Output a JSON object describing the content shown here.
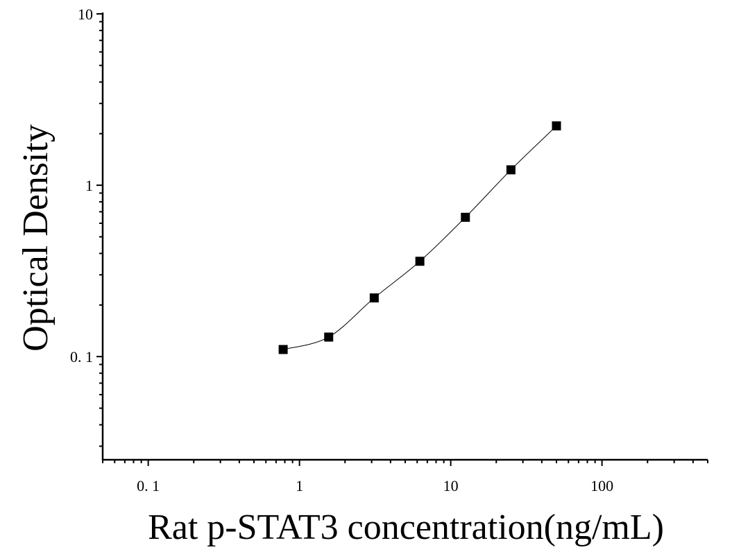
{
  "chart_data": {
    "type": "scatter",
    "title": "",
    "xlabel": "Rat p-STAT3 concentration(ng/mL)",
    "ylabel": "Optical Density",
    "x_scale": "log",
    "y_scale": "log",
    "xlim": [
      0.05,
      500
    ],
    "ylim": [
      0.025,
      10
    ],
    "x_ticks": [
      {
        "value": 0.1,
        "label": "0. 1"
      },
      {
        "value": 1,
        "label": "1"
      },
      {
        "value": 10,
        "label": "10"
      },
      {
        "value": 100,
        "label": "100"
      }
    ],
    "y_ticks": [
      {
        "value": 0.1,
        "label": "0. 1"
      },
      {
        "value": 1,
        "label": "1"
      },
      {
        "value": 10,
        "label": "10"
      }
    ],
    "grid": false,
    "legend": "none",
    "series": [
      {
        "marker": "square",
        "color": "#000000",
        "fit_line": true,
        "x": [
          0.78,
          1.56,
          3.12,
          6.25,
          12.5,
          25,
          50
        ],
        "y": [
          0.11,
          0.13,
          0.22,
          0.36,
          0.65,
          1.23,
          2.22
        ]
      }
    ]
  }
}
